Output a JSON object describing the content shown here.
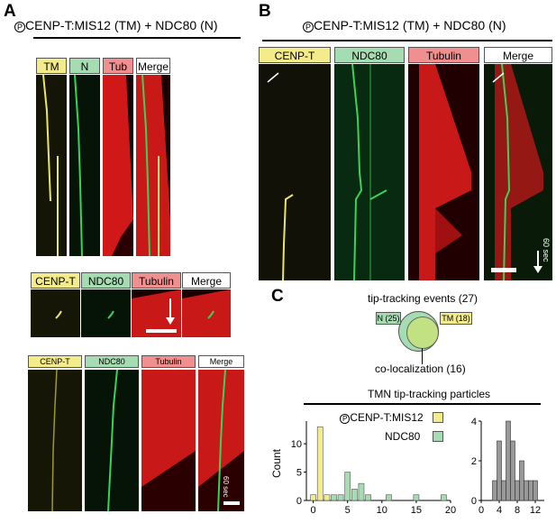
{
  "panels": {
    "A": {
      "letter": "A",
      "title_sup": "P",
      "title": "CENP-T:MIS12 (TM) + NDC80 (N)",
      "row1_labels": [
        "TM",
        "N",
        "Tub",
        "Merge"
      ],
      "row2_labels": [
        "CENP-T",
        "NDC80",
        "Tubulin",
        "Merge"
      ],
      "row3_labels": [
        "CENP-T",
        "NDC80",
        "Tubulin",
        "Merge"
      ],
      "row3_time_label": "60 sec"
    },
    "B": {
      "letter": "B",
      "title_sup": "P",
      "title": "CENP-T:MIS12 (TM) + NDC80 (N)",
      "labels": [
        "CENP-T",
        "NDC80",
        "Tubulin",
        "Merge"
      ],
      "time_label": "60 sec"
    },
    "C": {
      "letter": "C",
      "venn_title": "tip-tracking events (27)",
      "venn_left": "N (25)",
      "venn_right": "TM (18)",
      "venn_bottom": "co-localization (16)",
      "hist_title": "TMN tip-tracking particles",
      "legend_cenpt_sup": "P",
      "legend_cenpt": "CENP-T:MIS12",
      "legend_ndc80": "NDC80",
      "ylabel": "Count"
    }
  },
  "colors": {
    "yellow_label": "#f4ec8a",
    "green_label": "#a6dcb1",
    "red_label": "#ef8f8f",
    "hist_yellow": "#f4ec8a",
    "hist_green": "#a6dcb1",
    "hist_gray": "#999999"
  },
  "chart_data": [
    {
      "type": "bar",
      "title": "TMN tip-tracking particles",
      "ylabel": "Count",
      "xlim": [
        -1,
        20
      ],
      "ylim": [
        0,
        14
      ],
      "xticks": [
        0,
        5,
        10,
        15,
        20
      ],
      "yticks": [
        0,
        5,
        10
      ],
      "series": [
        {
          "name": "CENP-T:MIS12",
          "x": [
            0,
            1,
            2
          ],
          "values": [
            1,
            13,
            1
          ]
        },
        {
          "name": "NDC80",
          "x": [
            3,
            4,
            5,
            6,
            7,
            8,
            11,
            15,
            19
          ],
          "values": [
            1,
            1,
            5,
            2,
            3,
            1,
            1,
            1,
            1
          ]
        }
      ]
    },
    {
      "type": "bar",
      "xlim": [
        0,
        14
      ],
      "ylim": [
        0,
        4
      ],
      "xticks": [
        0,
        4,
        8,
        12
      ],
      "yticks": [
        0,
        2,
        4
      ],
      "x": [
        3,
        4,
        5,
        6,
        7,
        8,
        9,
        10,
        11,
        12
      ],
      "values": [
        1,
        3,
        1,
        4,
        3,
        1,
        2,
        1,
        1,
        1
      ]
    }
  ]
}
